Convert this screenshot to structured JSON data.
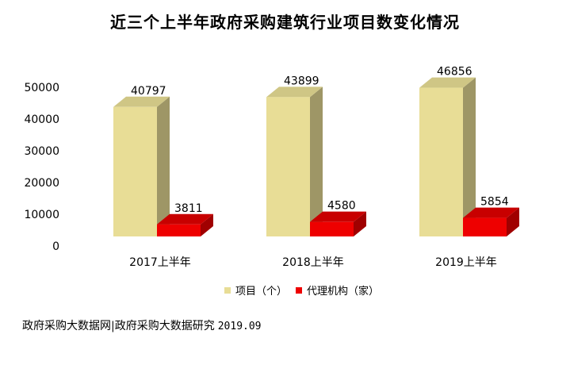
{
  "page": {
    "source_text": "政府采购大数据网|政府采购大数据研究",
    "date_text": "2019.09"
  },
  "chart_data": {
    "type": "bar",
    "title": "近三个上半年政府采购建筑行业项目数变化情况",
    "categories": [
      "2017上半年",
      "2018上半年",
      "2019上半年"
    ],
    "series": [
      {
        "name": "项目（个）",
        "values": [
          40797,
          43899,
          46856
        ],
        "color": "#E8DD96",
        "side_color": "#9E9666",
        "top_color": "#CFC685"
      },
      {
        "name": "代理机构（家）",
        "values": [
          3811,
          4580,
          5854
        ],
        "color": "#EE0000",
        "side_color": "#A00000",
        "top_color": "#C80000"
      }
    ],
    "ylim": [
      0,
      50000
    ],
    "yticks": [
      0,
      10000,
      20000,
      30000,
      40000,
      50000
    ],
    "xlabel": "",
    "ylabel": "",
    "grid": false,
    "legend": "bottom",
    "style": "3d-bar"
  }
}
